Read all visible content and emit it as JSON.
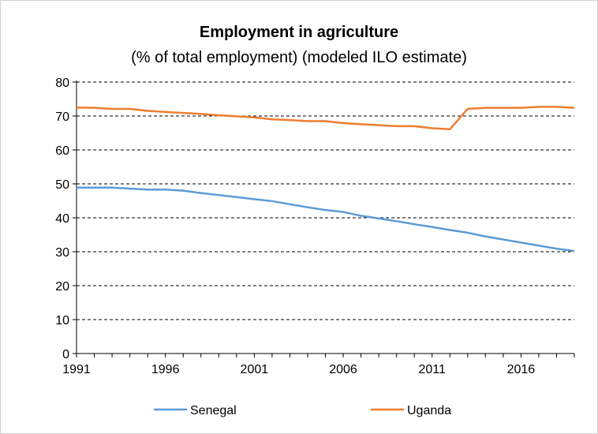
{
  "chart_data": {
    "type": "line",
    "title": "Employment in agriculture",
    "subtitle": "(% of total employment) (modeled ILO estimate)",
    "xlabel": "",
    "ylabel": "",
    "xlim": [
      1991,
      2019
    ],
    "ylim": [
      0,
      80
    ],
    "x_ticks": [
      "1991",
      "1996",
      "2001",
      "2006",
      "2011",
      "2016"
    ],
    "y_ticks": [
      "0",
      "10",
      "20",
      "30",
      "40",
      "50",
      "60",
      "70",
      "80"
    ],
    "grid": "horizontal dashed",
    "legend_position": "bottom",
    "x": [
      1991,
      1992,
      1993,
      1994,
      1995,
      1996,
      1997,
      1998,
      1999,
      2000,
      2001,
      2002,
      2003,
      2004,
      2005,
      2006,
      2007,
      2008,
      2009,
      2010,
      2011,
      2012,
      2013,
      2014,
      2015,
      2016,
      2017,
      2018,
      2019
    ],
    "series": [
      {
        "name": "Senegal",
        "color": "#5b9bd5",
        "values": [
          48.9,
          48.9,
          48.9,
          48.6,
          48.3,
          48.3,
          48.0,
          47.3,
          46.7,
          46.1,
          45.5,
          44.9,
          44.0,
          43.1,
          42.3,
          41.7,
          40.6,
          39.8,
          39.0,
          38.1,
          37.3,
          36.4,
          35.6,
          34.5,
          33.6,
          32.7,
          31.8,
          30.9,
          30.2
        ]
      },
      {
        "name": "Uganda",
        "color": "#ed7d31",
        "values": [
          72.5,
          72.4,
          72.1,
          72.1,
          71.5,
          71.2,
          70.9,
          70.6,
          70.2,
          69.9,
          69.6,
          69.0,
          68.8,
          68.5,
          68.5,
          67.9,
          67.6,
          67.3,
          67.0,
          67.0,
          66.4,
          66.1,
          72.1,
          72.4,
          72.4,
          72.4,
          72.7,
          72.7,
          72.4
        ]
      }
    ]
  }
}
